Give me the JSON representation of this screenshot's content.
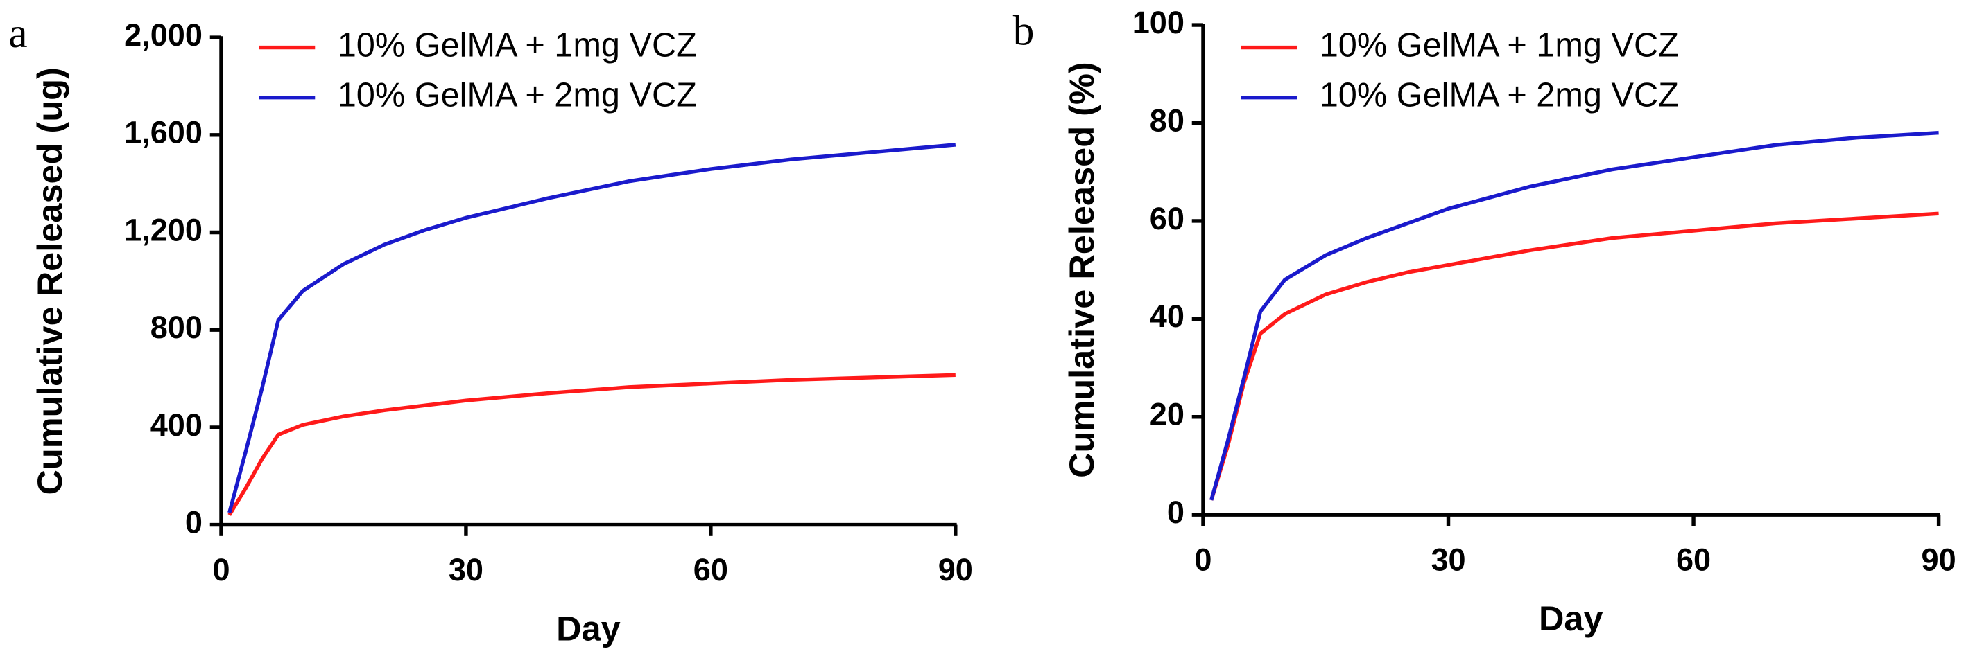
{
  "chart_data": [
    {
      "type": "line",
      "panel_label": "a",
      "xlabel": "Day",
      "ylabel": "Cumulative Released (ug)",
      "x": [
        1,
        3,
        5,
        7,
        10,
        15,
        20,
        25,
        30,
        40,
        50,
        60,
        70,
        80,
        90
      ],
      "series": [
        {
          "name": "10% GelMA + 1mg VCZ",
          "color": "#ff1a1a",
          "values": [
            40,
            150,
            270,
            370,
            410,
            445,
            470,
            490,
            510,
            540,
            565,
            580,
            595,
            605,
            615
          ]
        },
        {
          "name": "10% GelMA + 2mg VCZ",
          "color": "#1a1acc",
          "values": [
            50,
            300,
            560,
            840,
            960,
            1070,
            1150,
            1210,
            1260,
            1340,
            1410,
            1460,
            1500,
            1530,
            1560
          ]
        }
      ],
      "xlim": [
        0,
        90
      ],
      "xticks": [
        0,
        30,
        60,
        90
      ],
      "ylim": [
        0,
        2000
      ],
      "yticks": [
        0,
        400,
        800,
        {
          "value": 1200,
          "label": "1,200"
        },
        {
          "value": 1600,
          "label": "1,600"
        },
        {
          "value": 2000,
          "label": "2,000"
        }
      ],
      "legend": "upper left"
    },
    {
      "type": "line",
      "panel_label": "b",
      "xlabel": "Day",
      "ylabel": "Cumulative Released (%)",
      "x": [
        1,
        3,
        5,
        7,
        10,
        15,
        20,
        25,
        30,
        40,
        50,
        60,
        70,
        80,
        90
      ],
      "series": [
        {
          "name": "10% GelMA + 1mg VCZ",
          "color": "#ff1a1a",
          "values": [
            3,
            14,
            27,
            37,
            41,
            45,
            47.5,
            49.5,
            51,
            54,
            56.5,
            58,
            59.5,
            60.5,
            61.5
          ]
        },
        {
          "name": "10% GelMA + 2mg VCZ",
          "color": "#1a1acc",
          "values": [
            3,
            15,
            28,
            41.5,
            48,
            53,
            56.5,
            59.5,
            62.5,
            67,
            70.5,
            73,
            75.5,
            77,
            78
          ]
        }
      ],
      "xlim": [
        0,
        90
      ],
      "xticks": [
        0,
        30,
        60,
        90
      ],
      "ylim": [
        0,
        100
      ],
      "yticks": [
        0,
        20,
        40,
        60,
        80,
        100
      ],
      "legend": "upper left"
    }
  ]
}
